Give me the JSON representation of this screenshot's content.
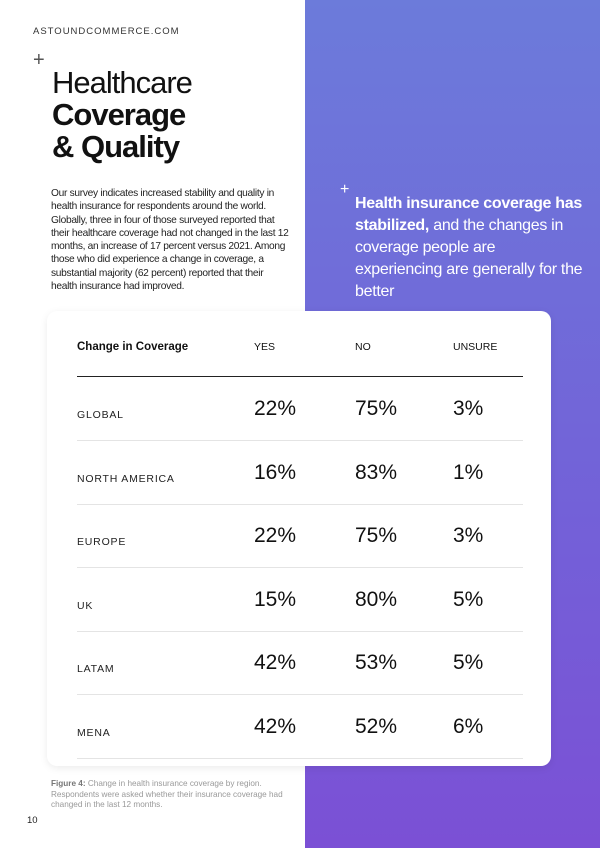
{
  "header": {
    "site": "ASTOUNDCOMMERCE.COM"
  },
  "title": {
    "line1": "Healthcare",
    "line2": "Coverage",
    "line3": "& Quality"
  },
  "intro": "Our survey indicates increased stability and quality in health insurance for respondents around the world. Globally, three in four of those surveyed reported that their healthcare coverage had not changed in the last 12 months, an increase of 17 percent versus 2021. Among those who did experience a change in coverage, a substantial majority (62 percent) reported that their health insurance had improved.",
  "quote": {
    "bold": "Health insurance coverage has stabilized,",
    "rest": "and the changes in coverage people are experiencing are generally for the better"
  },
  "table": {
    "headers": [
      "Change in Coverage",
      "YES",
      "NO",
      "UNSURE"
    ],
    "rows": [
      {
        "region": "GLOBAL",
        "yes": "22%",
        "no": "75%",
        "unsure": "3%"
      },
      {
        "region": "NORTH AMERICA",
        "yes": "16%",
        "no": "83%",
        "unsure": "1%"
      },
      {
        "region": "EUROPE",
        "yes": "22%",
        "no": "75%",
        "unsure": "3%"
      },
      {
        "region": "UK",
        "yes": "15%",
        "no": "80%",
        "unsure": "5%"
      },
      {
        "region": "LATAM",
        "yes": "42%",
        "no": "53%",
        "unsure": "5%"
      },
      {
        "region": "MENA",
        "yes": "42%",
        "no": "52%",
        "unsure": "6%"
      }
    ]
  },
  "caption": {
    "label": "Figure 4:",
    "text": " Change in health insurance coverage by region. Respondents were asked whether their insurance coverage had changed in the last 12 months."
  },
  "page_number": "10",
  "colors": {
    "gradient_top": "#6c7bda",
    "gradient_bottom": "#7b50d5"
  }
}
